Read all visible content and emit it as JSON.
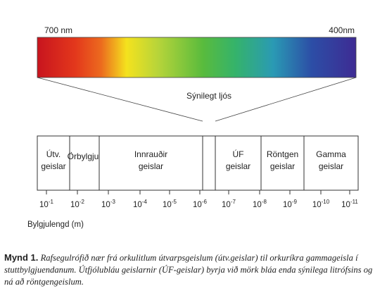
{
  "spectrum": {
    "left_label": "700 nm",
    "right_label": "400nm",
    "visible_light_label": "Sýnilegt ljós",
    "colors": [
      "#c8141e",
      "#e3381c",
      "#ec6a1e",
      "#f4e21e",
      "#b6d43a",
      "#59bb3d",
      "#35b36a",
      "#2a9ab4",
      "#2c4ea6",
      "#3e2b93"
    ]
  },
  "bands": [
    {
      "label_lines": [
        "Útv.",
        "geislar"
      ]
    },
    {
      "label_lines": [
        "Örbylgjur"
      ]
    },
    {
      "label_lines": [
        "Innrauðir",
        "geislar"
      ]
    },
    {
      "label_lines": []
    },
    {
      "label_lines": [
        "ÚF",
        "geislar"
      ]
    },
    {
      "label_lines": [
        "Röntgen",
        "geislar"
      ]
    },
    {
      "label_lines": [
        "Gamma",
        "geislar"
      ]
    }
  ],
  "ticks": [
    {
      "base": "10",
      "exp": "-1"
    },
    {
      "base": "10",
      "exp": "-2"
    },
    {
      "base": "10",
      "exp": "-3"
    },
    {
      "base": "10",
      "exp": "-4"
    },
    {
      "base": "10",
      "exp": "-5"
    },
    {
      "base": "10",
      "exp": "-6"
    },
    {
      "base": "10",
      "exp": "-7"
    },
    {
      "base": "10",
      "exp": "-8"
    },
    {
      "base": "10",
      "exp": "-9"
    },
    {
      "base": "10",
      "exp": "-10"
    },
    {
      "base": "10",
      "exp": "-11"
    }
  ],
  "axis_label": "Bylgjulengd (m)",
  "caption": {
    "label": "Mynd 1.",
    "text": "Rafsegulrófið nær frá orkulitlum útvarpsgeislum (útv.geislar) til orkuríkra gammageisla í stuttbylgjuendanum. Útfjólubláu geislarnir (ÚF-geislar) byrja við mörk bláa enda sýnilega litrófsins og ná að röntgengeislum."
  }
}
